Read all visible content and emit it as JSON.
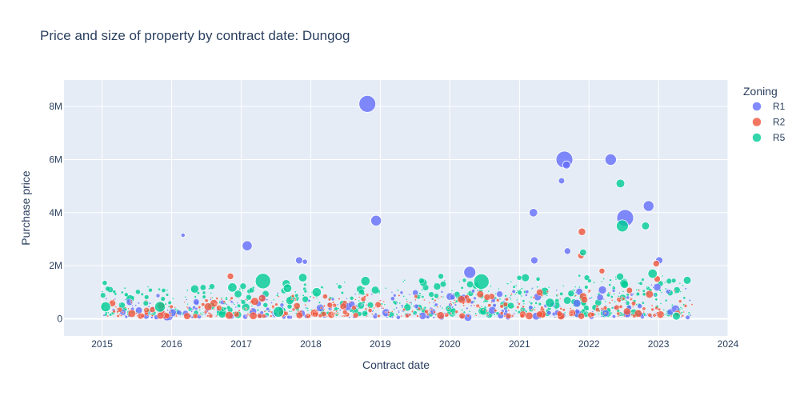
{
  "chart_data": {
    "type": "scatter",
    "title": "Price and size of property by contract date: Dungog",
    "xlabel": "Contract date",
    "ylabel": "Purchase price",
    "x_ticks": [
      "2015",
      "2016",
      "2017",
      "2018",
      "2019",
      "2020",
      "2021",
      "2022",
      "2023",
      "2024"
    ],
    "y_ticks": [
      "0",
      "2M",
      "4M",
      "6M",
      "8M"
    ],
    "xlim": [
      "2014-06-15",
      "2024-01-01"
    ],
    "ylim": [
      -650000,
      9000000
    ],
    "grid": true,
    "legend": {
      "title": "Zoning",
      "position": "right"
    },
    "colors": {
      "plot_bg": "#e5ecf6",
      "R1": "#636efa",
      "R2": "#ef553b",
      "R5": "#00cc96"
    },
    "series": [
      {
        "name": "R1",
        "points": [
          {
            "x": "2016-03-01",
            "y": 3150000,
            "size": 0.08
          },
          {
            "x": "2017-02-01",
            "y": 2750000,
            "size": 0.5
          },
          {
            "x": "2017-11-01",
            "y": 2200000,
            "size": 0.3
          },
          {
            "x": "2017-12-01",
            "y": 2150000,
            "size": 0.15
          },
          {
            "x": "2018-10-25",
            "y": 8100000,
            "size": 1.0
          },
          {
            "x": "2018-12-10",
            "y": 3700000,
            "size": 0.55
          },
          {
            "x": "2020-04-15",
            "y": 1750000,
            "size": 0.65
          },
          {
            "x": "2021-03-15",
            "y": 4000000,
            "size": 0.38
          },
          {
            "x": "2021-03-20",
            "y": 2200000,
            "size": 0.3
          },
          {
            "x": "2021-08-10",
            "y": 5200000,
            "size": 0.22
          },
          {
            "x": "2021-08-25",
            "y": 6000000,
            "size": 1.0
          },
          {
            "x": "2021-09-05",
            "y": 5800000,
            "size": 0.35
          },
          {
            "x": "2021-09-10",
            "y": 2550000,
            "size": 0.25
          },
          {
            "x": "2022-04-25",
            "y": 6000000,
            "size": 0.6
          },
          {
            "x": "2022-07-10",
            "y": 3800000,
            "size": 1.0
          },
          {
            "x": "2022-11-10",
            "y": 4250000,
            "size": 0.55
          },
          {
            "x": "2023-01-05",
            "y": 2200000,
            "size": 0.3
          }
        ]
      },
      {
        "name": "R2",
        "points": [
          {
            "x": "2016-11-05",
            "y": 1600000,
            "size": 0.25
          },
          {
            "x": "2021-11-25",
            "y": 3280000,
            "size": 0.32
          },
          {
            "x": "2021-11-20",
            "y": 2380000,
            "size": 0.25
          },
          {
            "x": "2022-03-10",
            "y": 1800000,
            "size": 0.2
          },
          {
            "x": "2022-12-20",
            "y": 2080000,
            "size": 0.25
          },
          {
            "x": "2022-12-25",
            "y": 1500000,
            "size": 0.25
          }
        ]
      },
      {
        "name": "R5",
        "points": [
          {
            "x": "2015-01-15",
            "y": 1350000,
            "size": 0.15
          },
          {
            "x": "2015-01-20",
            "y": 450000,
            "size": 0.5
          },
          {
            "x": "2015-11-01",
            "y": 450000,
            "size": 0.55
          },
          {
            "x": "2016-11-15",
            "y": 1180000,
            "size": 0.45
          },
          {
            "x": "2017-04-25",
            "y": 1420000,
            "size": 0.9
          },
          {
            "x": "2017-07-15",
            "y": 260000,
            "size": 0.55
          },
          {
            "x": "2017-09-01",
            "y": 1150000,
            "size": 0.4
          },
          {
            "x": "2017-11-20",
            "y": 1550000,
            "size": 0.4
          },
          {
            "x": "2018-02-01",
            "y": 1000000,
            "size": 0.45
          },
          {
            "x": "2018-10-15",
            "y": 1420000,
            "size": 0.45
          },
          {
            "x": "2019-11-15",
            "y": 1600000,
            "size": 0.2
          },
          {
            "x": "2020-06-15",
            "y": 1400000,
            "size": 0.9
          },
          {
            "x": "2021-06-10",
            "y": 600000,
            "size": 0.45
          },
          {
            "x": "2021-12-01",
            "y": 2500000,
            "size": 0.28
          },
          {
            "x": "2022-06-15",
            "y": 5100000,
            "size": 0.4
          },
          {
            "x": "2022-06-25",
            "y": 3500000,
            "size": 0.65
          },
          {
            "x": "2022-10-25",
            "y": 3500000,
            "size": 0.35
          },
          {
            "x": "2022-12-01",
            "y": 1700000,
            "size": 0.45
          },
          {
            "x": "2023-04-05",
            "y": 100000,
            "size": 0.35
          },
          {
            "x": "2023-06-01",
            "y": 1450000,
            "size": 0.35
          }
        ]
      }
    ],
    "background_cloud": [
      {
        "series": "R5",
        "from": "2015-01-01",
        "to": "2023-06-30",
        "price_range": [
          150000,
          1500000
        ],
        "count": 620
      },
      {
        "series": "R1",
        "from": "2015-01-01",
        "to": "2023-06-30",
        "price_range": [
          50000,
          1100000
        ],
        "count": 320
      },
      {
        "series": "R2",
        "from": "2015-01-01",
        "to": "2023-06-30",
        "price_range": [
          100000,
          950000
        ],
        "count": 360
      }
    ]
  }
}
